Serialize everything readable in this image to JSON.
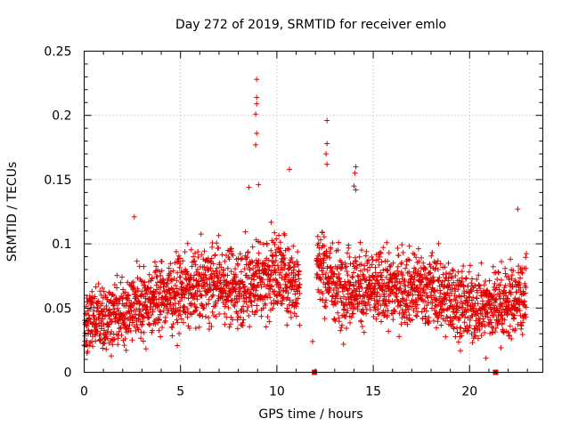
{
  "chart_data": {
    "type": "scatter",
    "title": "Day 272 of 2019, SRMTID for receiver emlo",
    "xlabel": "GPS time / hours",
    "ylabel": "SRMTID / TECUs",
    "xlim": [
      0,
      23.8
    ],
    "ylim": [
      0,
      0.25
    ],
    "x_ticks": [
      0,
      5,
      10,
      15,
      20
    ],
    "x_tick_labels": [
      "0",
      "5",
      "10",
      "15",
      "20"
    ],
    "y_ticks": [
      0,
      0.05,
      0.1,
      0.15,
      0.2,
      0.25
    ],
    "y_tick_labels": [
      "0",
      "0.05",
      "0.1",
      "0.15",
      "0.2",
      "0.25"
    ],
    "grid": true,
    "marker": "plus",
    "color": "#e00000",
    "gap_markers": [
      {
        "x": 11.95,
        "y": 0
      },
      {
        "x": 21.35,
        "y": 0
      }
    ],
    "isolated_points": [
      {
        "x": 8.95,
        "y": 0.228
      },
      {
        "x": 8.95,
        "y": 0.214
      },
      {
        "x": 8.95,
        "y": 0.209
      },
      {
        "x": 8.9,
        "y": 0.201
      },
      {
        "x": 8.95,
        "y": 0.186
      },
      {
        "x": 8.9,
        "y": 0.177
      },
      {
        "x": 12.6,
        "y": 0.196
      },
      {
        "x": 12.6,
        "y": 0.178
      },
      {
        "x": 12.55,
        "y": 0.17
      },
      {
        "x": 12.6,
        "y": 0.162
      },
      {
        "x": 14.1,
        "y": 0.16
      },
      {
        "x": 14.05,
        "y": 0.155
      },
      {
        "x": 14.0,
        "y": 0.145
      },
      {
        "x": 14.1,
        "y": 0.142
      },
      {
        "x": 10.65,
        "y": 0.158
      },
      {
        "x": 8.55,
        "y": 0.144
      },
      {
        "x": 9.05,
        "y": 0.146
      },
      {
        "x": 2.6,
        "y": 0.121
      },
      {
        "x": 22.5,
        "y": 0.127
      },
      {
        "x": 11.85,
        "y": 0.024
      },
      {
        "x": 0.15,
        "y": 0.015
      },
      {
        "x": 20.85,
        "y": 0.011
      }
    ],
    "envelope": [
      {
        "x": 0,
        "mean": 0.04,
        "spread": 0.022
      },
      {
        "x": 1,
        "mean": 0.042,
        "spread": 0.024
      },
      {
        "x": 2,
        "mean": 0.046,
        "spread": 0.026
      },
      {
        "x": 3,
        "mean": 0.055,
        "spread": 0.027
      },
      {
        "x": 4,
        "mean": 0.06,
        "spread": 0.027
      },
      {
        "x": 5,
        "mean": 0.062,
        "spread": 0.027
      },
      {
        "x": 6,
        "mean": 0.067,
        "spread": 0.028
      },
      {
        "x": 7,
        "mean": 0.071,
        "spread": 0.028
      },
      {
        "x": 8,
        "mean": 0.066,
        "spread": 0.03
      },
      {
        "x": 9,
        "mean": 0.072,
        "spread": 0.032
      },
      {
        "x": 10,
        "mean": 0.078,
        "spread": 0.032
      },
      {
        "x": 11,
        "mean": 0.07,
        "spread": 0.03
      },
      {
        "x": 12.1,
        "mean": 0.085,
        "spread": 0.03
      },
      {
        "x": 13,
        "mean": 0.068,
        "spread": 0.03
      },
      {
        "x": 14,
        "mean": 0.067,
        "spread": 0.03
      },
      {
        "x": 15,
        "mean": 0.064,
        "spread": 0.028
      },
      {
        "x": 16,
        "mean": 0.066,
        "spread": 0.028
      },
      {
        "x": 17,
        "mean": 0.066,
        "spread": 0.028
      },
      {
        "x": 18,
        "mean": 0.064,
        "spread": 0.028
      },
      {
        "x": 19,
        "mean": 0.058,
        "spread": 0.028
      },
      {
        "x": 20,
        "mean": 0.05,
        "spread": 0.027
      },
      {
        "x": 21,
        "mean": 0.052,
        "spread": 0.027
      },
      {
        "x": 22,
        "mean": 0.054,
        "spread": 0.028
      },
      {
        "x": 23,
        "mean": 0.06,
        "spread": 0.028
      }
    ],
    "data_gap_hours": [
      11.2,
      12.05
    ],
    "samples_per_hour": 120,
    "data_end_hour": 22.95
  }
}
